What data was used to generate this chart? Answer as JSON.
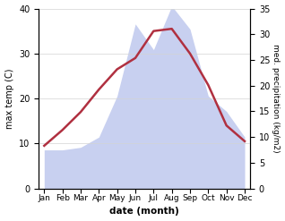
{
  "months": [
    "Jan",
    "Feb",
    "Mar",
    "Apr",
    "May",
    "Jun",
    "Jul",
    "Aug",
    "Sep",
    "Oct",
    "Nov",
    "Dec"
  ],
  "month_indices": [
    0,
    1,
    2,
    3,
    4,
    5,
    6,
    7,
    8,
    9,
    10,
    11
  ],
  "temperature": [
    9.5,
    13.0,
    17.0,
    22.0,
    26.5,
    29.0,
    35.0,
    35.5,
    30.0,
    23.0,
    14.0,
    10.5
  ],
  "precipitation": [
    7.5,
    7.5,
    8.0,
    10.0,
    18.0,
    32.0,
    27.0,
    35.5,
    31.0,
    18.0,
    15.0,
    10.0
  ],
  "temp_color": "#b03040",
  "precip_fill_color": "#c8d0f0",
  "temp_ylim": [
    0,
    40
  ],
  "precip_ylim": [
    0,
    35
  ],
  "temp_yticks": [
    0,
    10,
    20,
    30,
    40
  ],
  "precip_yticks": [
    0,
    5,
    10,
    15,
    20,
    25,
    30,
    35
  ],
  "xlabel": "date (month)",
  "ylabel_left": "max temp (C)",
  "ylabel_right": "med. precipitation (kg/m2)",
  "figsize": [
    3.18,
    2.47
  ],
  "dpi": 100
}
